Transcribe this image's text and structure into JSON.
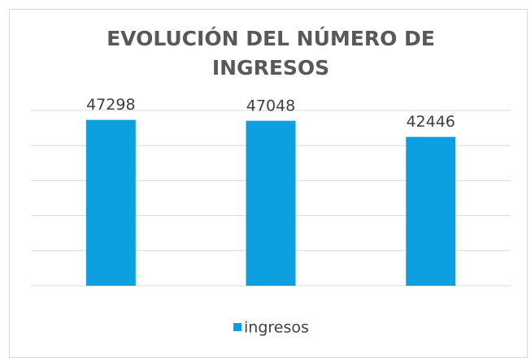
{
  "chart_data": {
    "type": "bar",
    "title": "EVOLUCIÓN DEL NÚMERO DE INGRESOS",
    "categories": [
      null,
      null,
      null
    ],
    "series": [
      {
        "name": "ingresos",
        "color": "#0ca0e0",
        "values": [
          47298,
          47048,
          42446
        ]
      }
    ],
    "ylim": [
      0,
      50000
    ],
    "yticks": [
      0,
      10000,
      20000,
      30000,
      40000,
      50000
    ],
    "grid": true,
    "legend": "bottom"
  }
}
